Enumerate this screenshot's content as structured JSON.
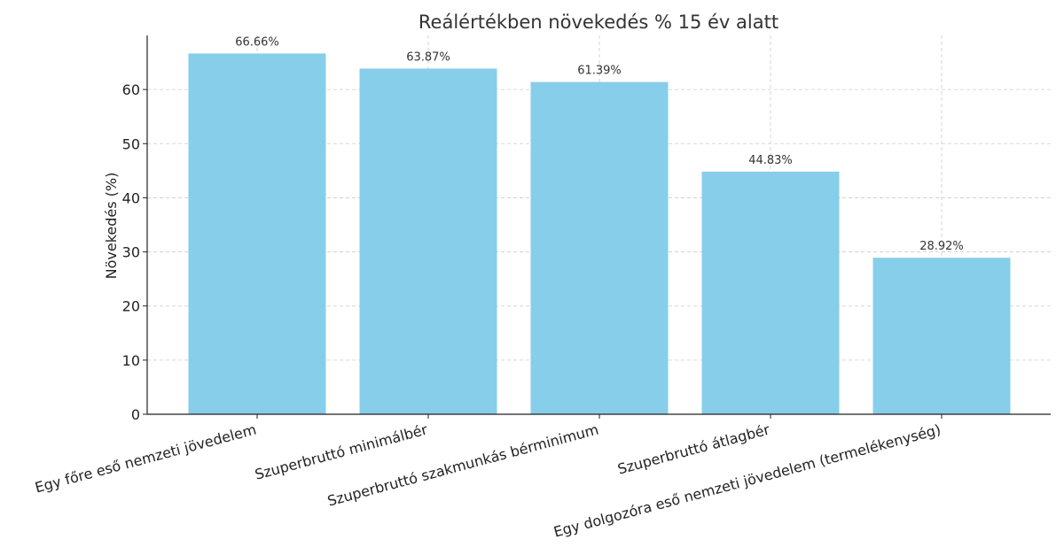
{
  "chart_data": {
    "type": "bar",
    "title": "Reálértékben növekedés % 15 év alatt",
    "xlabel": "",
    "ylabel": "Növekedés (%)",
    "ylim": [
      0,
      70
    ],
    "yticks": [
      0,
      10,
      20,
      30,
      40,
      50,
      60
    ],
    "grid": true,
    "bar_color": "#87ceeb",
    "categories": [
      "Egy főre eső nemzeti jövedelem",
      "Szuperbruttó minimálbér",
      "Szuperbruttó szakmunkás bérminimum",
      "Szuperbruttó átlagbér",
      "Egy dolgozóra eső nemzeti jövedelem (termelékenység)"
    ],
    "values": [
      66.66,
      63.87,
      61.39,
      44.83,
      28.92
    ],
    "data_labels": [
      "66.66%",
      "63.87%",
      "61.39%",
      "44.83%",
      "28.92%"
    ]
  }
}
